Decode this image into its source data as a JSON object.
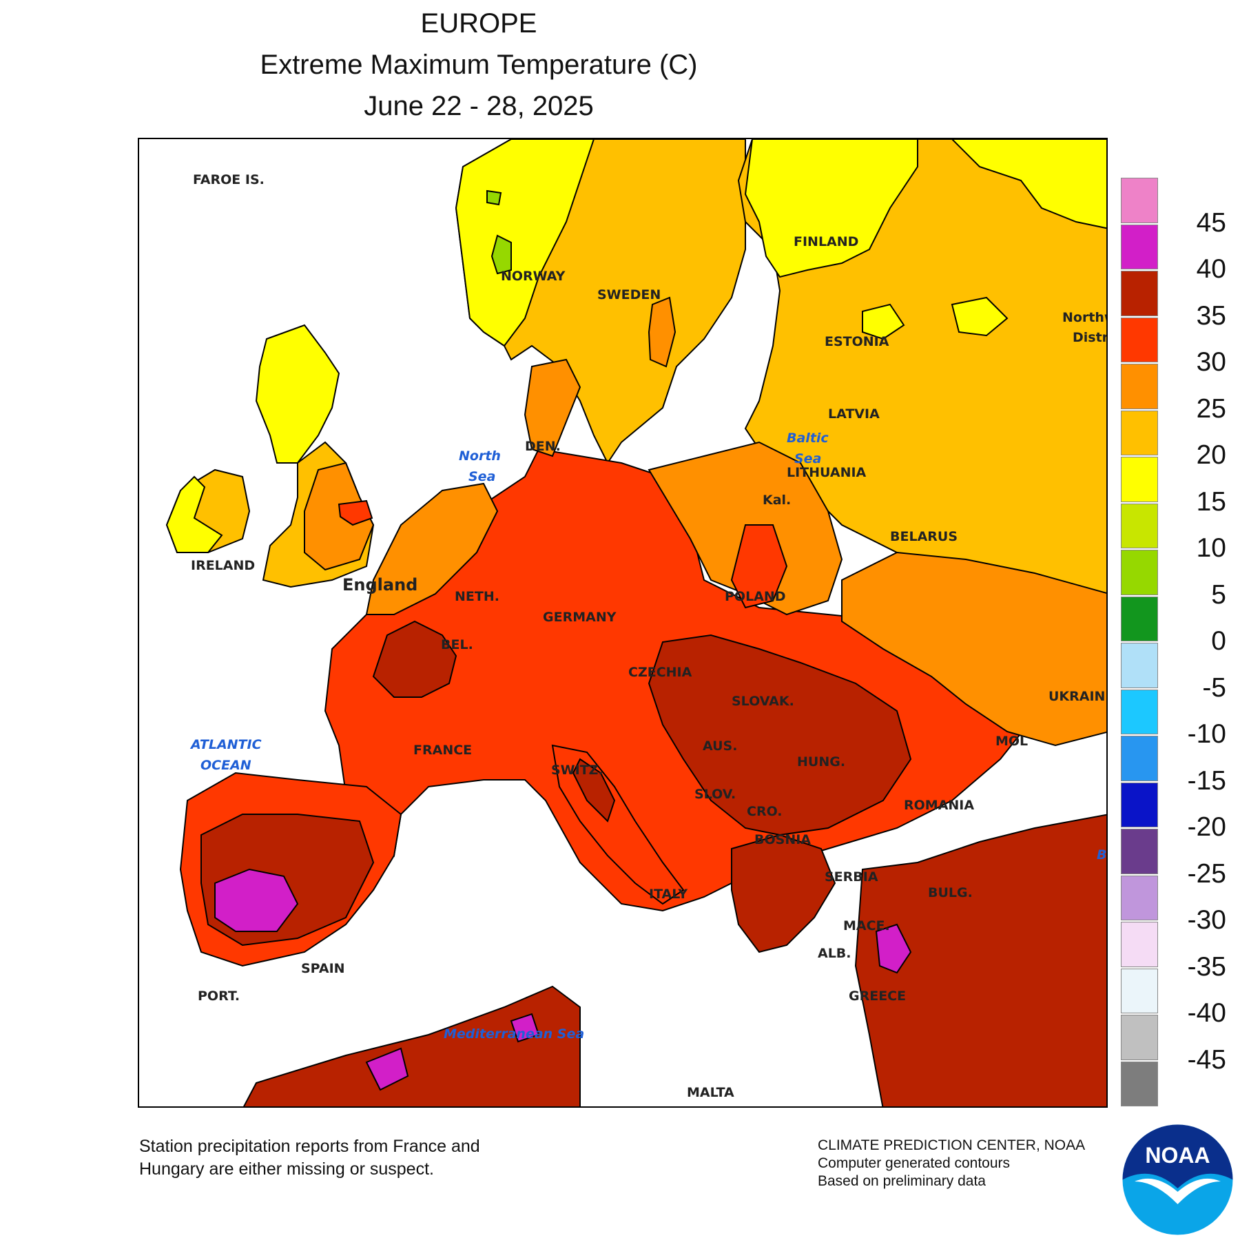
{
  "header": {
    "region": "EUROPE",
    "variable": "Extreme Maximum Temperature (C)",
    "period": "June 22 - 28, 2025"
  },
  "legend": {
    "labels": [
      "45",
      "40",
      "35",
      "30",
      "25",
      "20",
      "15",
      "10",
      "5",
      "0",
      "-5",
      "-10",
      "-15",
      "-20",
      "-25",
      "-30",
      "-35",
      "-40",
      "-45"
    ],
    "colors": [
      "#ee82c8",
      "#d21fc8",
      "#b82200",
      "#ff3800",
      "#ff9000",
      "#ffc000",
      "#ffff00",
      "#c8e600",
      "#96d800",
      "#12961e",
      "#b0e0f8",
      "#1cc8ff",
      "#2896f0",
      "#0a14c8",
      "#6a3c8c",
      "#c096dc",
      "#f5dcf5",
      "#ebf5fa",
      "#c0c0c0",
      "#7d7d7d"
    ]
  },
  "map_labels": {
    "faroe": "FAROE IS.",
    "norway": "NORWAY",
    "sweden": "SWEDEN",
    "finland": "FINLAND",
    "estonia": "ESTONIA",
    "latvia": "LATVIA",
    "lithuania": "LITHUANIA",
    "kal": "Kal.",
    "belarus": "BELARUS",
    "northwest_a": "Northw",
    "northwest_b": "Distri",
    "ireland": "IRELAND",
    "england": "England",
    "den": "DEN.",
    "neth": "NETH.",
    "bel": "BEL.",
    "germany": "GERMANY",
    "poland": "POLAND",
    "czechia": "CZECHIA",
    "slovak": "SLOVAK.",
    "ukraine": "UKRAINE",
    "france": "FRANCE",
    "switz": "SWITZ.",
    "aus": "AUS.",
    "hung": "HUNG.",
    "mol": "MOL",
    "slov": "SLOV.",
    "cro": "CRO.",
    "romania": "ROMANIA",
    "bosnia": "BOSNIA",
    "serbia": "SERBIA",
    "bulg": "BULG.",
    "italy": "ITALY",
    "mace": "MACE.",
    "alb": "ALB.",
    "greece": "GREECE",
    "spain": "SPAIN",
    "port": "PORT.",
    "malta": "MALTA",
    "b_edge": "B"
  },
  "sea_labels": {
    "north_a": "North",
    "north_b": "Sea",
    "baltic_a": "Baltic",
    "baltic_b": "Sea",
    "atlantic_a": "ATLANTIC",
    "atlantic_b": "OCEAN",
    "med": "Mediterranean Sea"
  },
  "footer": {
    "note_line1": "Station precipitation reports from France and",
    "note_line2": "Hungary are either missing or suspect.",
    "credit_line1": "CLIMATE PREDICTION CENTER, NOAA",
    "credit_line2": "Computer generated contours",
    "credit_line3": "Based on preliminary data",
    "logo_text": "NOAA"
  }
}
